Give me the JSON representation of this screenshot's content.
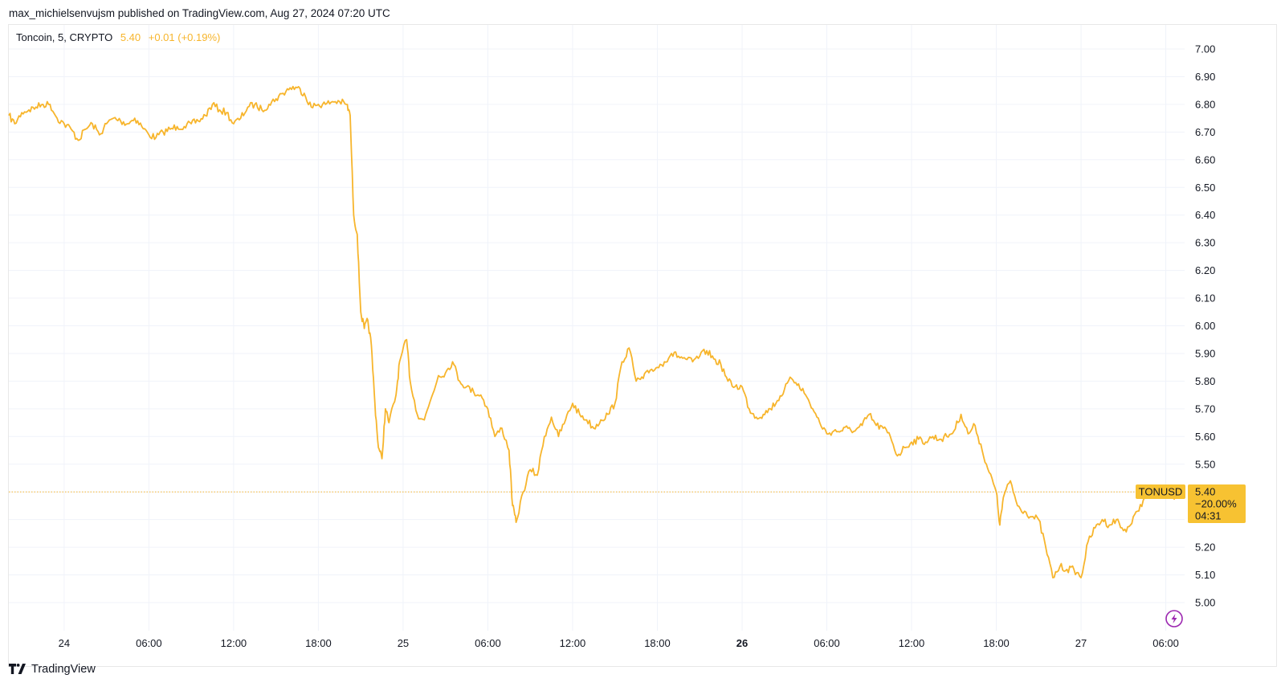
{
  "attribution": "max_michielsenvujsm published on TradingView.com, Aug 27, 2024 07:20 UTC",
  "legend": {
    "symbol": "Toncoin, 5, CRYPTO",
    "value": "5.40",
    "change": "+0.01 (+0.19%)"
  },
  "brand": "TradingView",
  "colors": {
    "line": "#f7b52c",
    "grid": "#f0f3fa",
    "last_price_line": "#f7b52c",
    "badge_bg": "#f7c232",
    "lightning": "#9c27b0"
  },
  "price_tag": {
    "symbol": "TONUSD",
    "price": "5.40",
    "change_pct": "−20.00%",
    "countdown": "04:31"
  },
  "icons": {
    "replay": "lightning-icon",
    "logo": "tradingview-logo-icon"
  },
  "chart_data": {
    "type": "line",
    "title": "",
    "xlabel": "",
    "ylabel": "",
    "ylim": [
      4.9,
      7.05
    ],
    "y_ticks": [
      5.0,
      5.1,
      5.2,
      5.3,
      5.4,
      5.5,
      5.6,
      5.7,
      5.8,
      5.9,
      6.0,
      6.1,
      6.2,
      6.3,
      6.4,
      6.5,
      6.6,
      6.7,
      6.8,
      6.9,
      7.0
    ],
    "y_tick_labels": [
      "5.00",
      "5.10",
      "5.20",
      "5.30",
      "5.40",
      "5.50",
      "5.60",
      "5.70",
      "5.80",
      "5.90",
      "6.00",
      "6.10",
      "6.20",
      "6.30",
      "6.40",
      "6.50",
      "6.60",
      "6.70",
      "6.80",
      "6.90",
      "7.00"
    ],
    "x_range": [
      "2024-08-23 20:05",
      "2024-08-27 07:20"
    ],
    "x_ticks": [
      {
        "time": "2024-08-24 00:00",
        "label": "24",
        "bold": false
      },
      {
        "time": "2024-08-24 06:00",
        "label": "06:00",
        "bold": false
      },
      {
        "time": "2024-08-24 12:00",
        "label": "12:00",
        "bold": false
      },
      {
        "time": "2024-08-24 18:00",
        "label": "18:00",
        "bold": false
      },
      {
        "time": "2024-08-25 00:00",
        "label": "25",
        "bold": false
      },
      {
        "time": "2024-08-25 06:00",
        "label": "06:00",
        "bold": false
      },
      {
        "time": "2024-08-25 12:00",
        "label": "12:00",
        "bold": false
      },
      {
        "time": "2024-08-25 18:00",
        "label": "18:00",
        "bold": false
      },
      {
        "time": "2024-08-26 00:00",
        "label": "26",
        "bold": true
      },
      {
        "time": "2024-08-26 06:00",
        "label": "06:00",
        "bold": false
      },
      {
        "time": "2024-08-26 12:00",
        "label": "12:00",
        "bold": false
      },
      {
        "time": "2024-08-26 18:00",
        "label": "18:00",
        "bold": false
      },
      {
        "time": "2024-08-27 00:00",
        "label": "27",
        "bold": false
      },
      {
        "time": "2024-08-27 06:00",
        "label": "06:00",
        "bold": false
      }
    ],
    "last_price": 5.4,
    "series": [
      {
        "points": [
          [
            "2024-08-23 20:05",
            6.76
          ],
          [
            "2024-08-23 20:30",
            6.73
          ],
          [
            "2024-08-23 21:00",
            6.77
          ],
          [
            "2024-08-23 21:30",
            6.78
          ],
          [
            "2024-08-23 22:00",
            6.79
          ],
          [
            "2024-08-23 22:30",
            6.8
          ],
          [
            "2024-08-23 23:00",
            6.8
          ],
          [
            "2024-08-23 23:30",
            6.75
          ],
          [
            "2024-08-24 00:00",
            6.73
          ],
          [
            "2024-08-24 00:30",
            6.71
          ],
          [
            "2024-08-24 01:00",
            6.67
          ],
          [
            "2024-08-24 01:30",
            6.71
          ],
          [
            "2024-08-24 02:00",
            6.73
          ],
          [
            "2024-08-24 02:30",
            6.69
          ],
          [
            "2024-08-24 03:00",
            6.73
          ],
          [
            "2024-08-24 03:30",
            6.75
          ],
          [
            "2024-08-24 04:00",
            6.74
          ],
          [
            "2024-08-24 04:30",
            6.73
          ],
          [
            "2024-08-24 05:00",
            6.75
          ],
          [
            "2024-08-24 05:30",
            6.72
          ],
          [
            "2024-08-24 06:00",
            6.69
          ],
          [
            "2024-08-24 06:30",
            6.68
          ],
          [
            "2024-08-24 07:00",
            6.7
          ],
          [
            "2024-08-24 07:30",
            6.71
          ],
          [
            "2024-08-24 08:00",
            6.72
          ],
          [
            "2024-08-24 08:30",
            6.72
          ],
          [
            "2024-08-24 09:00",
            6.73
          ],
          [
            "2024-08-24 09:30",
            6.74
          ],
          [
            "2024-08-24 10:00",
            6.76
          ],
          [
            "2024-08-24 10:30",
            6.8
          ],
          [
            "2024-08-24 11:00",
            6.78
          ],
          [
            "2024-08-24 11:30",
            6.77
          ],
          [
            "2024-08-24 12:00",
            6.73
          ],
          [
            "2024-08-24 12:30",
            6.75
          ],
          [
            "2024-08-24 13:00",
            6.79
          ],
          [
            "2024-08-24 13:30",
            6.8
          ],
          [
            "2024-08-24 14:00",
            6.78
          ],
          [
            "2024-08-24 14:30",
            6.8
          ],
          [
            "2024-08-24 15:00",
            6.82
          ],
          [
            "2024-08-24 15:30",
            6.84
          ],
          [
            "2024-08-24 16:00",
            6.86
          ],
          [
            "2024-08-24 16:30",
            6.86
          ],
          [
            "2024-08-24 17:00",
            6.84
          ],
          [
            "2024-08-24 17:30",
            6.79
          ],
          [
            "2024-08-24 18:00",
            6.8
          ],
          [
            "2024-08-24 18:30",
            6.8
          ],
          [
            "2024-08-24 19:00",
            6.81
          ],
          [
            "2024-08-24 19:30",
            6.81
          ],
          [
            "2024-08-24 20:00",
            6.8
          ],
          [
            "2024-08-24 20:15",
            6.76
          ],
          [
            "2024-08-24 20:30",
            6.4
          ],
          [
            "2024-08-24 20:45",
            6.33
          ],
          [
            "2024-08-24 21:00",
            6.05
          ],
          [
            "2024-08-24 21:15",
            5.99
          ],
          [
            "2024-08-24 21:30",
            6.02
          ],
          [
            "2024-08-24 21:45",
            5.93
          ],
          [
            "2024-08-24 22:00",
            5.72
          ],
          [
            "2024-08-24 22:15",
            5.56
          ],
          [
            "2024-08-24 22:30",
            5.52
          ],
          [
            "2024-08-24 22:45",
            5.7
          ],
          [
            "2024-08-24 23:00",
            5.65
          ],
          [
            "2024-08-24 23:30",
            5.75
          ],
          [
            "2024-08-24 23:45",
            5.87
          ],
          [
            "2024-08-25 00:15",
            5.95
          ],
          [
            "2024-08-25 00:30",
            5.8
          ],
          [
            "2024-08-25 01:00",
            5.68
          ],
          [
            "2024-08-25 01:30",
            5.66
          ],
          [
            "2024-08-25 02:00",
            5.74
          ],
          [
            "2024-08-25 02:30",
            5.82
          ],
          [
            "2024-08-25 03:00",
            5.83
          ],
          [
            "2024-08-25 03:30",
            5.87
          ],
          [
            "2024-08-25 04:00",
            5.8
          ],
          [
            "2024-08-25 04:30",
            5.78
          ],
          [
            "2024-08-25 05:00",
            5.76
          ],
          [
            "2024-08-25 05:30",
            5.75
          ],
          [
            "2024-08-25 06:00",
            5.7
          ],
          [
            "2024-08-25 06:30",
            5.6
          ],
          [
            "2024-08-25 07:00",
            5.63
          ],
          [
            "2024-08-25 07:30",
            5.55
          ],
          [
            "2024-08-25 07:45",
            5.35
          ],
          [
            "2024-08-25 08:00",
            5.29
          ],
          [
            "2024-08-25 08:30",
            5.4
          ],
          [
            "2024-08-25 09:00",
            5.48
          ],
          [
            "2024-08-25 09:30",
            5.46
          ],
          [
            "2024-08-25 10:00",
            5.6
          ],
          [
            "2024-08-25 10:30",
            5.67
          ],
          [
            "2024-08-25 11:00",
            5.6
          ],
          [
            "2024-08-25 11:30",
            5.66
          ],
          [
            "2024-08-25 12:00",
            5.72
          ],
          [
            "2024-08-25 12:30",
            5.68
          ],
          [
            "2024-08-25 13:00",
            5.66
          ],
          [
            "2024-08-25 13:30",
            5.63
          ],
          [
            "2024-08-25 14:00",
            5.66
          ],
          [
            "2024-08-25 14:30",
            5.68
          ],
          [
            "2024-08-25 15:00",
            5.72
          ],
          [
            "2024-08-25 15:30",
            5.87
          ],
          [
            "2024-08-25 16:00",
            5.92
          ],
          [
            "2024-08-25 16:30",
            5.8
          ],
          [
            "2024-08-25 17:00",
            5.81
          ],
          [
            "2024-08-25 17:30",
            5.84
          ],
          [
            "2024-08-25 18:00",
            5.85
          ],
          [
            "2024-08-25 18:30",
            5.87
          ],
          [
            "2024-08-25 19:00",
            5.9
          ],
          [
            "2024-08-25 19:30",
            5.89
          ],
          [
            "2024-08-25 20:00",
            5.88
          ],
          [
            "2024-08-25 20:30",
            5.87
          ],
          [
            "2024-08-25 21:00",
            5.89
          ],
          [
            "2024-08-25 21:30",
            5.91
          ],
          [
            "2024-08-25 22:00",
            5.88
          ],
          [
            "2024-08-25 22:30",
            5.86
          ],
          [
            "2024-08-25 23:00",
            5.8
          ],
          [
            "2024-08-25 23:30",
            5.78
          ],
          [
            "2024-08-26 00:00",
            5.78
          ],
          [
            "2024-08-26 00:30",
            5.7
          ],
          [
            "2024-08-26 01:00",
            5.67
          ],
          [
            "2024-08-26 01:30",
            5.68
          ],
          [
            "2024-08-26 02:00",
            5.7
          ],
          [
            "2024-08-26 02:30",
            5.73
          ],
          [
            "2024-08-26 03:00",
            5.77
          ],
          [
            "2024-08-26 03:30",
            5.81
          ],
          [
            "2024-08-26 04:00",
            5.79
          ],
          [
            "2024-08-26 04:30",
            5.75
          ],
          [
            "2024-08-26 05:00",
            5.7
          ],
          [
            "2024-08-26 05:30",
            5.65
          ],
          [
            "2024-08-26 06:00",
            5.61
          ],
          [
            "2024-08-26 06:30",
            5.62
          ],
          [
            "2024-08-26 07:00",
            5.62
          ],
          [
            "2024-08-26 07:30",
            5.63
          ],
          [
            "2024-08-26 08:00",
            5.62
          ],
          [
            "2024-08-26 08:30",
            5.64
          ],
          [
            "2024-08-26 09:00",
            5.68
          ],
          [
            "2024-08-26 09:30",
            5.64
          ],
          [
            "2024-08-26 10:00",
            5.63
          ],
          [
            "2024-08-26 10:30",
            5.6
          ],
          [
            "2024-08-26 11:00",
            5.53
          ],
          [
            "2024-08-26 11:30",
            5.56
          ],
          [
            "2024-08-26 12:00",
            5.58
          ],
          [
            "2024-08-26 12:30",
            5.59
          ],
          [
            "2024-08-26 13:00",
            5.58
          ],
          [
            "2024-08-26 13:30",
            5.6
          ],
          [
            "2024-08-26 14:00",
            5.59
          ],
          [
            "2024-08-26 14:30",
            5.6
          ],
          [
            "2024-08-26 15:00",
            5.62
          ],
          [
            "2024-08-26 15:30",
            5.68
          ],
          [
            "2024-08-26 16:00",
            5.61
          ],
          [
            "2024-08-26 16:30",
            5.64
          ],
          [
            "2024-08-26 17:00",
            5.55
          ],
          [
            "2024-08-26 17:30",
            5.47
          ],
          [
            "2024-08-26 18:00",
            5.4
          ],
          [
            "2024-08-26 18:15",
            5.28
          ],
          [
            "2024-08-26 18:30",
            5.38
          ],
          [
            "2024-08-26 19:00",
            5.44
          ],
          [
            "2024-08-26 19:30",
            5.35
          ],
          [
            "2024-08-26 20:00",
            5.33
          ],
          [
            "2024-08-26 20:30",
            5.31
          ],
          [
            "2024-08-26 21:00",
            5.3
          ],
          [
            "2024-08-26 21:30",
            5.2
          ],
          [
            "2024-08-26 22:00",
            5.09
          ],
          [
            "2024-08-26 22:30",
            5.13
          ],
          [
            "2024-08-26 23:00",
            5.12
          ],
          [
            "2024-08-26 23:30",
            5.12
          ],
          [
            "2024-08-27 00:00",
            5.09
          ],
          [
            "2024-08-27 00:30",
            5.22
          ],
          [
            "2024-08-27 01:00",
            5.27
          ],
          [
            "2024-08-27 01:30",
            5.3
          ],
          [
            "2024-08-27 02:00",
            5.28
          ],
          [
            "2024-08-27 02:30",
            5.3
          ],
          [
            "2024-08-27 03:00",
            5.26
          ],
          [
            "2024-08-27 03:30",
            5.28
          ],
          [
            "2024-08-27 04:00",
            5.33
          ],
          [
            "2024-08-27 04:30",
            5.38
          ],
          [
            "2024-08-27 05:00",
            5.39
          ],
          [
            "2024-08-27 05:30",
            5.4
          ],
          [
            "2024-08-27 06:00",
            5.41
          ],
          [
            "2024-08-27 06:30",
            5.38
          ],
          [
            "2024-08-27 07:00",
            5.4
          ],
          [
            "2024-08-27 07:20",
            5.4
          ]
        ]
      }
    ]
  }
}
